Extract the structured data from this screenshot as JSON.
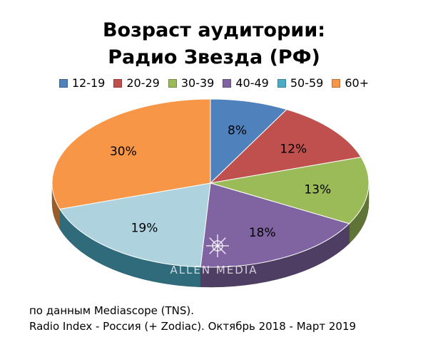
{
  "header": {
    "title_line1": "Возраст аудитории:",
    "title_line2": "Радио Звезда (РФ)"
  },
  "chart_data": {
    "type": "pie",
    "legend_position": "top",
    "slices": [
      {
        "label": "12-19",
        "value": 8,
        "display": "8%",
        "color": "#4f81bd"
      },
      {
        "label": "20-29",
        "value": 12,
        "display": "12%",
        "color": "#c0504d"
      },
      {
        "label": "30-39",
        "value": 13,
        "display": "13%",
        "color": "#9bbb59"
      },
      {
        "label": "40-49",
        "value": 18,
        "display": "18%",
        "color": "#8064a2"
      },
      {
        "label": "50-59",
        "value": 19,
        "display": "19%",
        "color": "#4bacc6"
      },
      {
        "label": "60+",
        "value": 30,
        "display": "30%",
        "color": "#f79646"
      }
    ]
  },
  "watermark": {
    "text": "ALLEN MEDIA"
  },
  "footer": {
    "source_line1": "по данным Mediascope (TNS).",
    "source_line2": "Radio Index - Россия (+ Zodiac). Октябрь 2018 - Март 2019"
  }
}
